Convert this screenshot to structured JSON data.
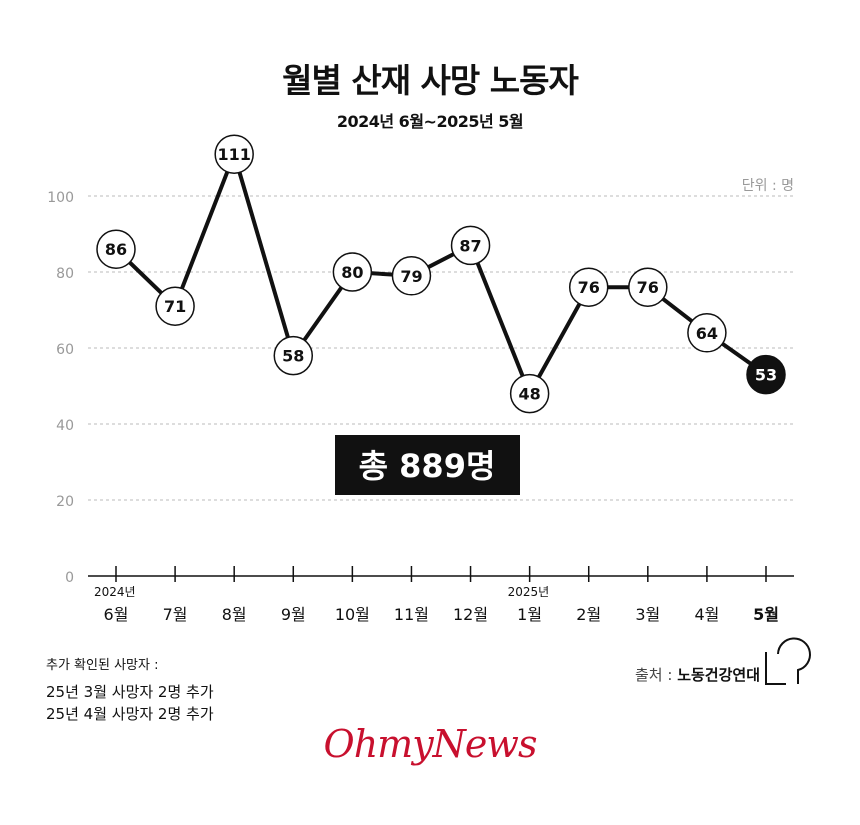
{
  "title": "월별 산재 사망 노동자",
  "subtitle": "2024년 6월~2025년 5월",
  "unit_label": "단위 : 명",
  "total_box": "총 889명",
  "notes": {
    "heading": "추가 확인된 사망자 :",
    "lines": [
      "25년 3월 사망자 2명 추가",
      "25년 4월 사망자 2명 추가"
    ]
  },
  "source": {
    "label": "출처 : ",
    "value": "노동건강연대"
  },
  "brand": "OhmyNews",
  "colors": {
    "brand": "#c8102e",
    "line": "#111111",
    "grid": "#bbbbbb",
    "axis_text": "#999999"
  },
  "chart_data": {
    "type": "line",
    "categories": [
      "6월",
      "7월",
      "8월",
      "9월",
      "10월",
      "11월",
      "12월",
      "1월",
      "2월",
      "3월",
      "4월",
      "5월"
    ],
    "year_markers": [
      {
        "index": 0,
        "label": "2024년"
      },
      {
        "index": 7,
        "label": "2025년"
      }
    ],
    "values": [
      86,
      71,
      111,
      58,
      80,
      79,
      87,
      48,
      76,
      76,
      64,
      53
    ],
    "highlight_index": 11,
    "ylim": [
      0,
      100
    ],
    "yticks": [
      0,
      20,
      40,
      60,
      80,
      100
    ],
    "grid": true,
    "grid_style": "dashed"
  }
}
